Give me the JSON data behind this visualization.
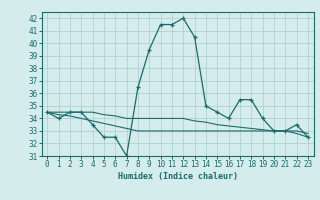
{
  "xlabel": "Humidex (Indice chaleur)",
  "ylabel": "",
  "bg_color": "#d5ecec",
  "grid_color": "#aacccc",
  "line_color": "#1a6b6b",
  "xlim": [
    -0.5,
    23.5
  ],
  "ylim": [
    31,
    42.5
  ],
  "yticks": [
    31,
    32,
    33,
    34,
    35,
    36,
    37,
    38,
    39,
    40,
    41,
    42
  ],
  "xticks": [
    0,
    1,
    2,
    3,
    4,
    5,
    6,
    7,
    8,
    9,
    10,
    11,
    12,
    13,
    14,
    15,
    16,
    17,
    18,
    19,
    20,
    21,
    22,
    23
  ],
  "main_series": [
    34.5,
    34.0,
    34.5,
    34.5,
    33.5,
    32.5,
    32.5,
    31.0,
    36.5,
    39.5,
    41.5,
    41.5,
    42.0,
    40.5,
    35.0,
    34.5,
    34.0,
    35.5,
    35.5,
    34.0,
    33.0,
    33.0,
    33.5,
    32.5
  ],
  "smooth_line1": [
    34.5,
    34.5,
    34.5,
    34.5,
    34.5,
    34.3,
    34.2,
    34.0,
    34.0,
    34.0,
    34.0,
    34.0,
    34.0,
    33.8,
    33.7,
    33.5,
    33.4,
    33.3,
    33.2,
    33.1,
    33.0,
    33.0,
    33.0,
    32.8
  ],
  "smooth_line2": [
    34.5,
    34.3,
    34.2,
    34.0,
    33.8,
    33.6,
    33.4,
    33.2,
    33.0,
    33.0,
    33.0,
    33.0,
    33.0,
    33.0,
    33.0,
    33.0,
    33.0,
    33.0,
    33.0,
    33.0,
    33.0,
    33.0,
    32.8,
    32.5
  ]
}
